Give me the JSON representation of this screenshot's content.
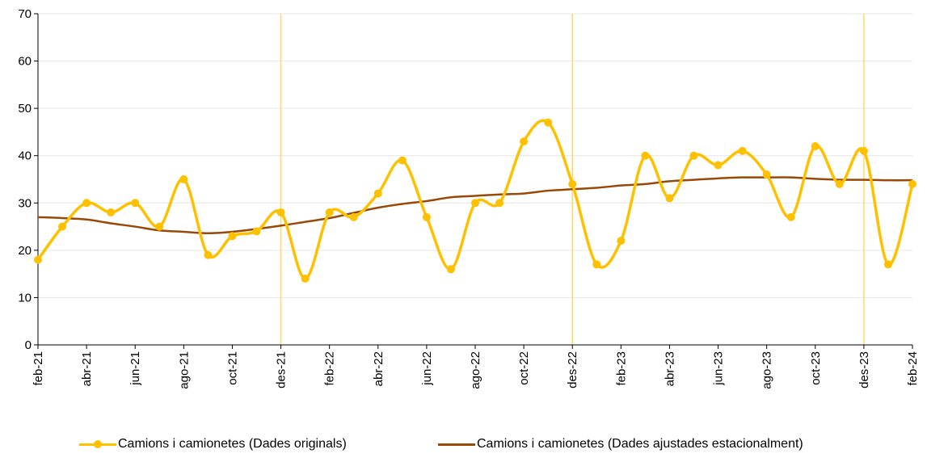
{
  "chart_data": {
    "type": "line",
    "title": "",
    "xlabel": "",
    "ylabel": "",
    "ylim": [
      0,
      70
    ],
    "yticks": [
      "0",
      "10",
      "20",
      "30",
      "40",
      "50",
      "60",
      "70"
    ],
    "grid": true,
    "legend_position": "bottom",
    "x": [
      "feb-21",
      "mar-21",
      "abr-21",
      "mai-21",
      "jun-21",
      "jul-21",
      "ago-21",
      "set-21",
      "oct-21",
      "nov-21",
      "des-21",
      "gen-22",
      "feb-22",
      "mar-22",
      "abr-22",
      "mai-22",
      "jun-22",
      "jul-22",
      "ago-22",
      "set-22",
      "oct-22",
      "nov-22",
      "des-22",
      "gen-23",
      "feb-23",
      "mar-23",
      "abr-23",
      "mai-23",
      "jun-23",
      "jul-23",
      "ago-23",
      "set-23",
      "oct-23",
      "nov-23",
      "des-23",
      "gen-24",
      "feb-24"
    ],
    "xtick_labels": [
      "feb-21",
      "abr-21",
      "jun-21",
      "ago-21",
      "oct-21",
      "des-21",
      "feb-22",
      "abr-22",
      "jun-22",
      "ago-22",
      "oct-22",
      "des-22",
      "feb-23",
      "abr-23",
      "jun-23",
      "ago-23",
      "oct-23",
      "des-23",
      "feb-24"
    ],
    "markers_at": [
      "des-21",
      "des-22",
      "des-23"
    ],
    "series": [
      {
        "name": "Camions i camionetes (Dades originals)",
        "color": "#FFC000",
        "values": [
          18,
          25,
          30,
          28,
          30,
          25,
          35,
          19,
          23,
          24,
          28,
          14,
          28,
          27,
          32,
          39,
          27,
          16,
          30,
          30,
          43,
          47,
          34,
          17,
          22,
          40,
          31,
          40,
          38,
          41,
          36,
          27,
          42,
          34,
          41,
          17,
          34
        ]
      },
      {
        "name": "Camions i camionetes (Dades ajustades estacionalment)",
        "color": "#984807",
        "values": [
          27,
          26.8,
          26.5,
          25.7,
          25,
          24.2,
          23.9,
          23.6,
          23.9,
          24.5,
          25.2,
          26,
          26.8,
          27.9,
          29,
          29.8,
          30.4,
          31.2,
          31.5,
          31.8,
          32,
          32.6,
          32.9,
          33.2,
          33.7,
          34,
          34.6,
          34.9,
          35.2,
          35.4,
          35.4,
          35.4,
          35.1,
          34.9,
          34.9,
          34.8,
          34.8
        ]
      }
    ]
  },
  "legend": {
    "item1": "Camions i camionetes (Dades originals)",
    "item2": "Camions i camionetes (Dades ajustades estacionalment)"
  }
}
